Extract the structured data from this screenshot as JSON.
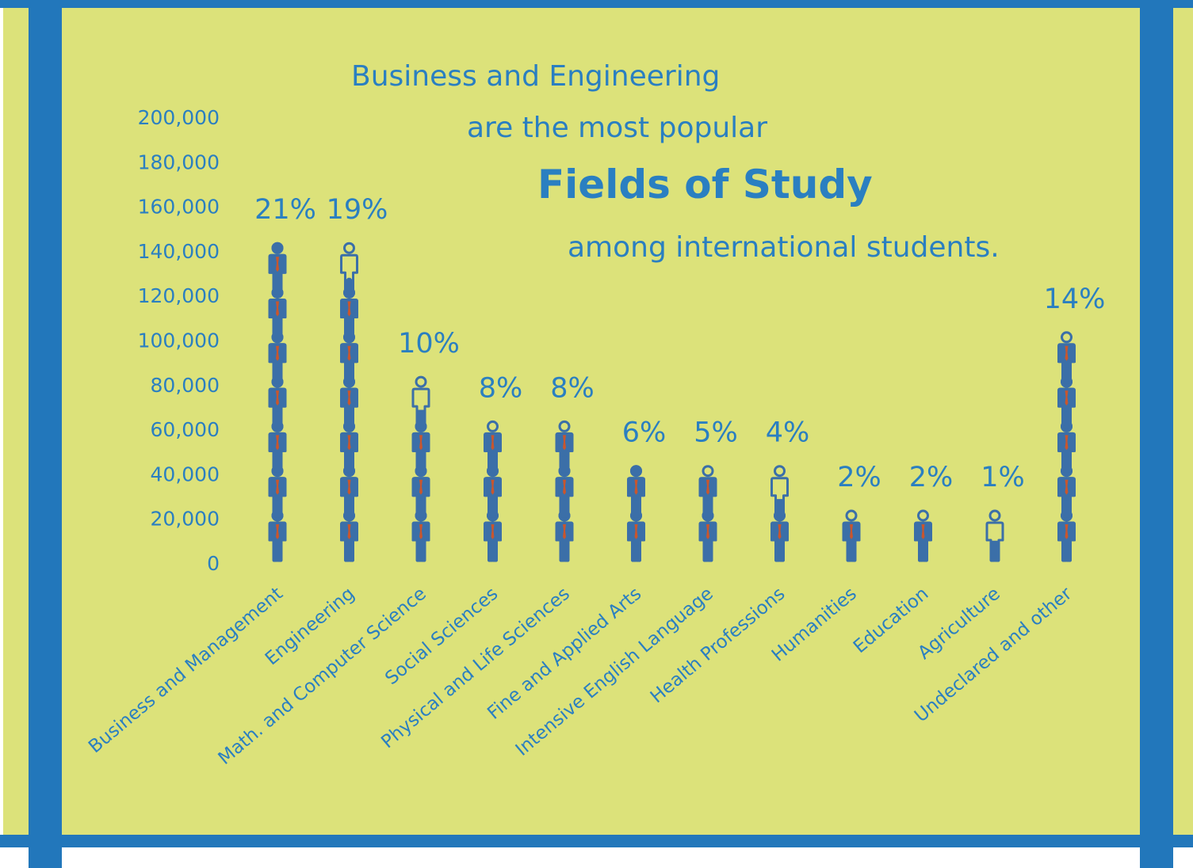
{
  "title": {
    "line1": "Business and Engineering",
    "line2": "are the most popular",
    "line3": "Fields of Study",
    "line4": "among international students."
  },
  "colors": {
    "background": "#dce27a",
    "frame": "#2277bb",
    "text": "#2a7fc1",
    "figure": "#3b6fa8",
    "figure_accent": "#c8562e"
  },
  "chart_data": {
    "type": "bar",
    "unit_icon": "person-icon",
    "value_per_icon": 20000,
    "categories": [
      "Business and Management",
      "Engineering",
      "Math. and Computer Science",
      "Social Sciences",
      "Physical and Life Sciences",
      "Fine and Applied Arts",
      "Intensive English Language",
      "Health Professions",
      "Humanities",
      "Education",
      "Agriculture",
      "Undeclared and other"
    ],
    "values": [
      138000,
      125000,
      66000,
      53000,
      53000,
      40000,
      33000,
      26000,
      13000,
      13000,
      7000,
      93000
    ],
    "percent_labels": [
      "21%",
      "19%",
      "10%",
      "8%",
      "8%",
      "6%",
      "5%",
      "4%",
      "2%",
      "2%",
      "1%",
      "14%"
    ],
    "y_ticks": [
      "200,000",
      "180,000",
      "160,000",
      "140,000",
      "120,000",
      "100,000",
      "80,000",
      "60,000",
      "40,000",
      "20,000",
      "0"
    ],
    "ylim": [
      0,
      200000
    ],
    "xlabel": "",
    "ylabel": ""
  }
}
